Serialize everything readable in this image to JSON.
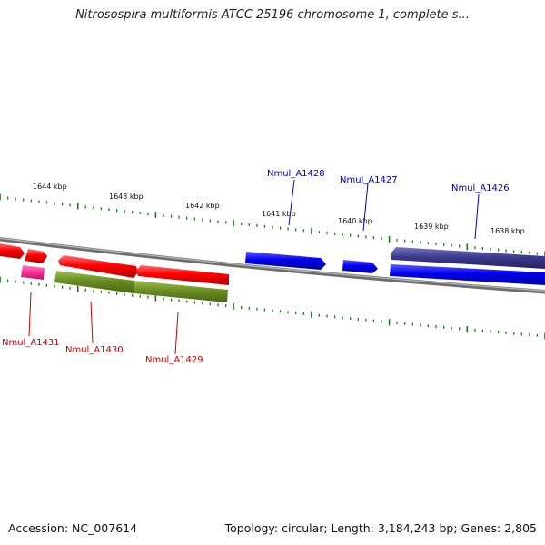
{
  "title": "Nitrosospira multiformis ATCC 25196 chromosome 1, complete s...",
  "ruler": [
    "1644 kbp",
    "1643 kbp",
    "1642 kbp",
    "1641 kbp",
    "1640 kbp",
    "1639 kbp",
    "1638 kbp"
  ],
  "genes_top": [
    "Nmul_A1428",
    "Nmul_A1427",
    "Nmul_A1426"
  ],
  "genes_bottom": [
    "Nmul_A1431",
    "Nmul_A1430",
    "Nmul_A1429"
  ],
  "footer": {
    "accession": "Accession: NC_007614",
    "topology": "Topology: circular; Length: 3,184,243 bp; Genes: 2,805"
  },
  "colors": {
    "red": "#ff0000",
    "blue": "#0000ee",
    "navy": "#3c3a8e",
    "olive": "#6b8e23",
    "pink": "#ff3399",
    "tick": "#1a7a1a",
    "backbone": "#808080",
    "label_red": "#cc0000",
    "label_blue": "#0000bb"
  }
}
